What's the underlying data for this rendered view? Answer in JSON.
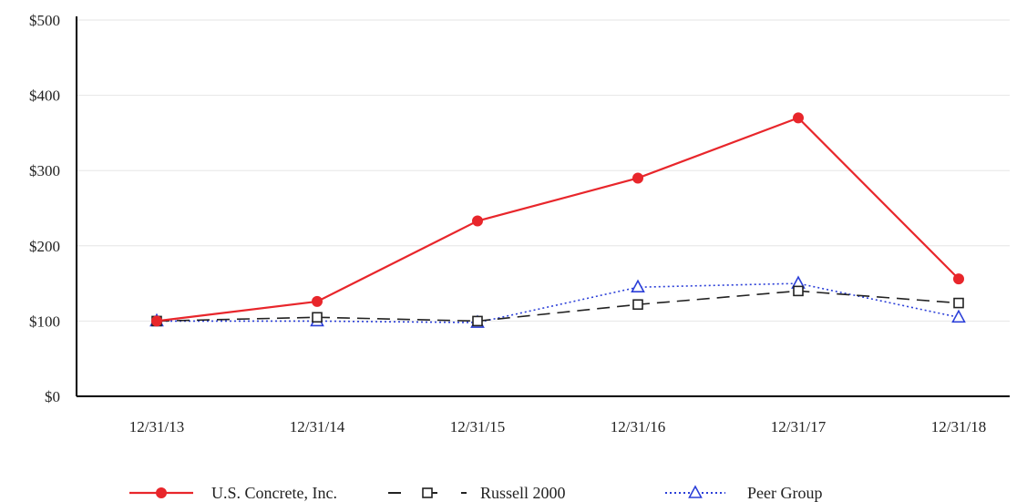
{
  "chart_data": {
    "type": "line",
    "title": "",
    "xlabel": "",
    "ylabel": "",
    "categories": [
      "12/31/13",
      "12/31/14",
      "12/31/15",
      "12/31/16",
      "12/31/17",
      "12/31/18"
    ],
    "ylim": [
      0,
      500
    ],
    "yticks": [
      0,
      100,
      200,
      300,
      400,
      500
    ],
    "ytick_labels": [
      "$0",
      "$100",
      "$200",
      "$300",
      "$400",
      "$500"
    ],
    "grid": "horizontal",
    "legend_position": "bottom",
    "series": [
      {
        "name": "U.S. Concrete, Inc.",
        "values": [
          100,
          126,
          233,
          290,
          370,
          156
        ],
        "color": "#e8262b",
        "line": "solid",
        "marker": "filled-circle"
      },
      {
        "name": "Russell 2000",
        "values": [
          100,
          105,
          100,
          122,
          140,
          124
        ],
        "color": "#222222",
        "line": "dashed",
        "marker": "open-square"
      },
      {
        "name": "Peer Group",
        "values": [
          100,
          100,
          98,
          145,
          150,
          105
        ],
        "color": "#2b3fd8",
        "line": "dotted",
        "marker": "open-triangle"
      }
    ]
  }
}
